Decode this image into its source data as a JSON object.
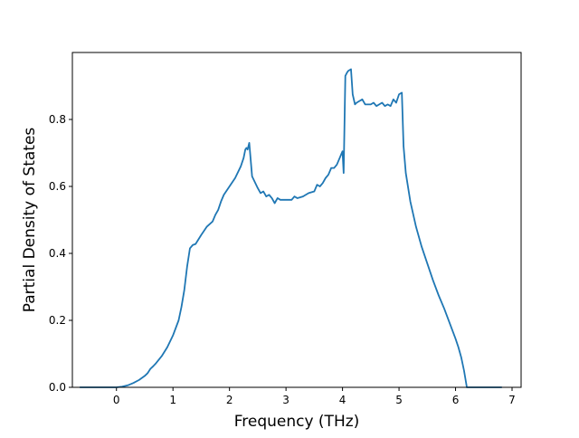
{
  "chart_data": {
    "type": "line",
    "title": "",
    "xlabel": "Frequency (THz)",
    "ylabel": "Partial Density of States",
    "xlim": [
      -0.78,
      7.16
    ],
    "ylim": [
      0.0,
      1.0
    ],
    "xticks": [
      0,
      1,
      2,
      3,
      4,
      5,
      6,
      7
    ],
    "xtick_labels": [
      "0",
      "1",
      "2",
      "3",
      "4",
      "5",
      "6",
      "7"
    ],
    "yticks": [
      0.0,
      0.2,
      0.4,
      0.6,
      0.8
    ],
    "ytick_labels": [
      "0.0",
      "0.2",
      "0.4",
      "0.6",
      "0.8"
    ],
    "grid": false,
    "legend": "none",
    "series": [
      {
        "color": "#1f77b4",
        "x": [
          -0.65,
          -0.4,
          -0.2,
          0.0,
          0.1,
          0.2,
          0.3,
          0.4,
          0.5,
          0.55,
          0.6,
          0.65,
          0.7,
          0.8,
          0.9,
          1.0,
          1.1,
          1.15,
          1.2,
          1.25,
          1.3,
          1.35,
          1.4,
          1.5,
          1.6,
          1.7,
          1.75,
          1.8,
          1.85,
          1.9,
          2.0,
          2.1,
          2.2,
          2.25,
          2.28,
          2.3,
          2.32,
          2.35,
          2.4,
          2.5,
          2.55,
          2.6,
          2.65,
          2.7,
          2.75,
          2.8,
          2.85,
          2.9,
          3.0,
          3.1,
          3.15,
          3.2,
          3.3,
          3.4,
          3.5,
          3.55,
          3.6,
          3.65,
          3.7,
          3.75,
          3.8,
          3.85,
          3.9,
          3.95,
          4.0,
          4.02,
          4.05,
          4.08,
          4.1,
          4.15,
          4.18,
          4.22,
          4.25,
          4.3,
          4.35,
          4.4,
          4.45,
          4.5,
          4.55,
          4.6,
          4.65,
          4.7,
          4.75,
          4.8,
          4.85,
          4.9,
          4.95,
          5.0,
          5.05,
          5.08,
          5.12,
          5.2,
          5.3,
          5.4,
          5.5,
          5.6,
          5.7,
          5.8,
          5.9,
          6.0,
          6.05,
          6.1,
          6.15,
          6.2,
          6.3,
          6.5,
          6.82
        ],
        "y": [
          0.0,
          0.0,
          0.0,
          0.0,
          0.002,
          0.006,
          0.013,
          0.022,
          0.034,
          0.042,
          0.055,
          0.063,
          0.072,
          0.093,
          0.12,
          0.155,
          0.2,
          0.24,
          0.29,
          0.36,
          0.415,
          0.425,
          0.428,
          0.455,
          0.48,
          0.495,
          0.515,
          0.53,
          0.555,
          0.575,
          0.6,
          0.625,
          0.66,
          0.685,
          0.71,
          0.715,
          0.71,
          0.73,
          0.63,
          0.595,
          0.58,
          0.585,
          0.57,
          0.575,
          0.565,
          0.55,
          0.565,
          0.56,
          0.56,
          0.56,
          0.57,
          0.565,
          0.57,
          0.58,
          0.585,
          0.605,
          0.6,
          0.61,
          0.625,
          0.635,
          0.655,
          0.655,
          0.665,
          0.685,
          0.705,
          0.64,
          0.93,
          0.94,
          0.945,
          0.95,
          0.875,
          0.845,
          0.85,
          0.855,
          0.86,
          0.845,
          0.845,
          0.845,
          0.85,
          0.84,
          0.845,
          0.85,
          0.84,
          0.845,
          0.84,
          0.86,
          0.85,
          0.875,
          0.88,
          0.72,
          0.64,
          0.555,
          0.48,
          0.42,
          0.37,
          0.32,
          0.275,
          0.235,
          0.19,
          0.145,
          0.12,
          0.09,
          0.05,
          0.0,
          0.0,
          0.0,
          0.0
        ]
      }
    ]
  }
}
